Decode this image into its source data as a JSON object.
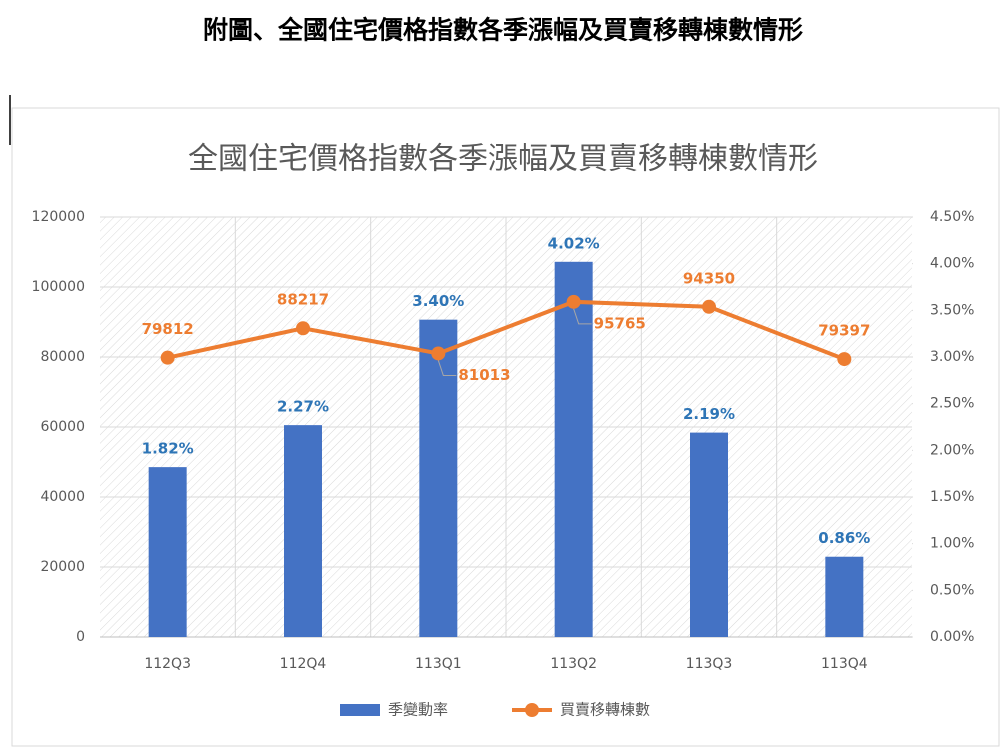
{
  "heading": "附圖、全國住宅價格指數各季漲幅及買賣移轉棟數情形",
  "chart_data": {
    "type": "combo",
    "title": "全國住宅價格指數各季漲幅及買賣移轉棟數情形",
    "categories": [
      "112Q3",
      "112Q4",
      "113Q1",
      "113Q2",
      "113Q3",
      "113Q4"
    ],
    "series": [
      {
        "name": "季變動率",
        "type": "bar",
        "axis": "y2",
        "color": "#4472c4",
        "values": [
          1.82,
          2.27,
          3.4,
          4.02,
          2.19,
          0.86
        ],
        "value_labels": [
          "1.82%",
          "2.27%",
          "3.40%",
          "4.02%",
          "2.19%",
          "0.86%"
        ]
      },
      {
        "name": "買賣移轉棟數",
        "type": "line",
        "axis": "y",
        "color": "#ed7d31",
        "values": [
          79812,
          88217,
          81013,
          95765,
          94350,
          79397
        ]
      }
    ],
    "ylim": [
      0,
      120000
    ],
    "yticks": [
      0,
      20000,
      40000,
      60000,
      80000,
      100000,
      120000
    ],
    "y2lim": [
      0,
      4.5
    ],
    "y2ticks": [
      {
        "value": 0,
        "label": "0.00%"
      },
      {
        "value": 0.5,
        "label": "0.50%"
      },
      {
        "value": 1,
        "label": "1.00%"
      },
      {
        "value": 1.5,
        "label": "1.50%"
      },
      {
        "value": 2,
        "label": "2.00%"
      },
      {
        "value": 2.5,
        "label": "2.50%"
      },
      {
        "value": 3,
        "label": "3.00%"
      },
      {
        "value": 3.5,
        "label": "3.50%"
      },
      {
        "value": 4,
        "label": "4.00%"
      },
      {
        "value": 4.5,
        "label": "4.50%"
      }
    ],
    "grid": true,
    "legend": "bottom"
  }
}
